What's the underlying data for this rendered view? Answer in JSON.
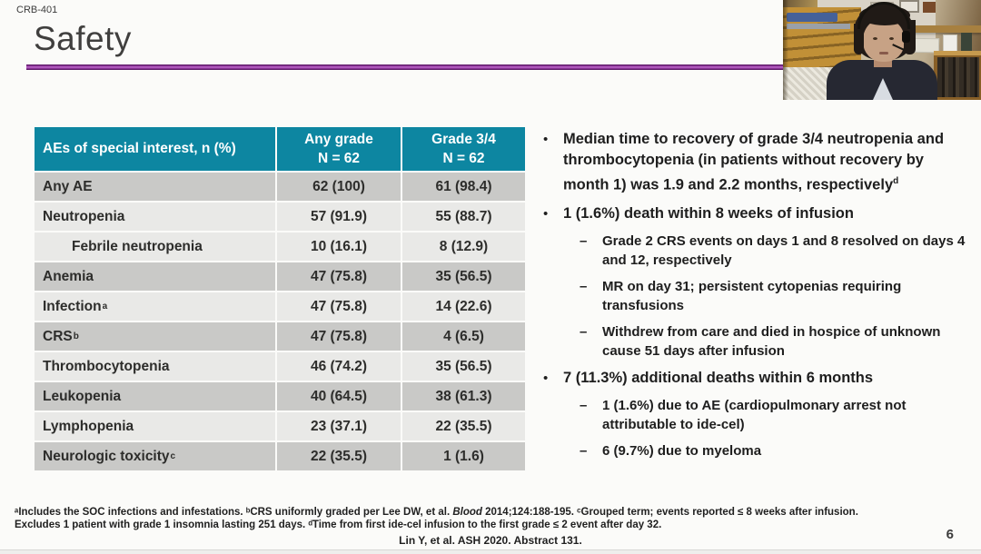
{
  "slide": {
    "eyebrow": "CRB-401",
    "title": "Safety",
    "page_number": "6"
  },
  "colors": {
    "accent_teal": "#0d86a1",
    "accent_purple": "#8e2f9c",
    "row_dark": "#c9c9c7",
    "row_light": "#e9e9e7"
  },
  "table": {
    "header": {
      "col1": "AEs of special interest, n (%)",
      "col2_line1": "Any grade",
      "col2_line2": "N = 62",
      "col3_line1": "Grade 3/4",
      "col3_line2": "N = 62"
    },
    "rows": [
      {
        "label": "Any AE",
        "sup": "",
        "indent": false,
        "any_grade": "62 (100)",
        "grade_3_4": "61 (98.4)",
        "shade": "dark"
      },
      {
        "label": "Neutropenia",
        "sup": "",
        "indent": false,
        "any_grade": "57 (91.9)",
        "grade_3_4": "55 (88.7)",
        "shade": "light"
      },
      {
        "label": "Febrile neutropenia",
        "sup": "",
        "indent": true,
        "any_grade": "10 (16.1)",
        "grade_3_4": "8 (12.9)",
        "shade": "light"
      },
      {
        "label": "Anemia",
        "sup": "",
        "indent": false,
        "any_grade": "47 (75.8)",
        "grade_3_4": "35 (56.5)",
        "shade": "dark"
      },
      {
        "label": "Infection",
        "sup": "a",
        "indent": false,
        "any_grade": "47 (75.8)",
        "grade_3_4": "14 (22.6)",
        "shade": "light"
      },
      {
        "label": "CRS",
        "sup": "b",
        "indent": false,
        "any_grade": "47 (75.8)",
        "grade_3_4": "4 (6.5)",
        "shade": "dark"
      },
      {
        "label": "Thrombocytopenia",
        "sup": "",
        "indent": false,
        "any_grade": "46 (74.2)",
        "grade_3_4": "35 (56.5)",
        "shade": "light"
      },
      {
        "label": "Leukopenia",
        "sup": "",
        "indent": false,
        "any_grade": "40 (64.5)",
        "grade_3_4": "38 (61.3)",
        "shade": "dark"
      },
      {
        "label": "Lymphopenia",
        "sup": "",
        "indent": false,
        "any_grade": "23 (37.1)",
        "grade_3_4": "22 (35.5)",
        "shade": "light"
      },
      {
        "label": "Neurologic toxicity",
        "sup": "c",
        "indent": false,
        "any_grade": "22 (35.5)",
        "grade_3_4": "1 (1.6)",
        "shade": "dark"
      }
    ]
  },
  "bullets": [
    {
      "text": "Median time to recovery of grade 3/4 neutropenia and thrombocytopenia (in patients without recovery by month 1) was 1.9 and 2.2 months, respectively",
      "sup": "d",
      "subs": []
    },
    {
      "text": "1 (1.6%) death within 8 weeks of infusion",
      "sup": "",
      "subs": [
        "Grade 2 CRS events on days 1 and 8 resolved on days 4 and 12, respectively",
        "MR on day 31; persistent cytopenias requiring transfusions",
        "Withdrew from care and died in hospice of unknown cause 51 days after infusion"
      ]
    },
    {
      "text": "7 (11.3%) additional deaths within 6 months",
      "sup": "",
      "subs": [
        "1 (1.6%) due to AE (cardiopulmonary arrest not attributable to ide-cel)",
        "6 (9.7%) due to myeloma"
      ]
    }
  ],
  "footnotes": {
    "line1_part1": "ᵃIncludes the SOC infections and infestations. ᵇCRS uniformly graded per Lee DW, et al. ",
    "line1_italic": "Blood",
    "line1_part2": " 2014;124:188-195. ᶜGrouped term; events reported ≤ 8 weeks after infusion.",
    "line2": "Excludes 1 patient with grade 1 insomnia lasting 251 days. ᵈTime from first ide-cel infusion to the first grade ≤ 2 event after day 32.",
    "citation": "Lin Y, et al. ASH 2020. Abstract 131."
  }
}
